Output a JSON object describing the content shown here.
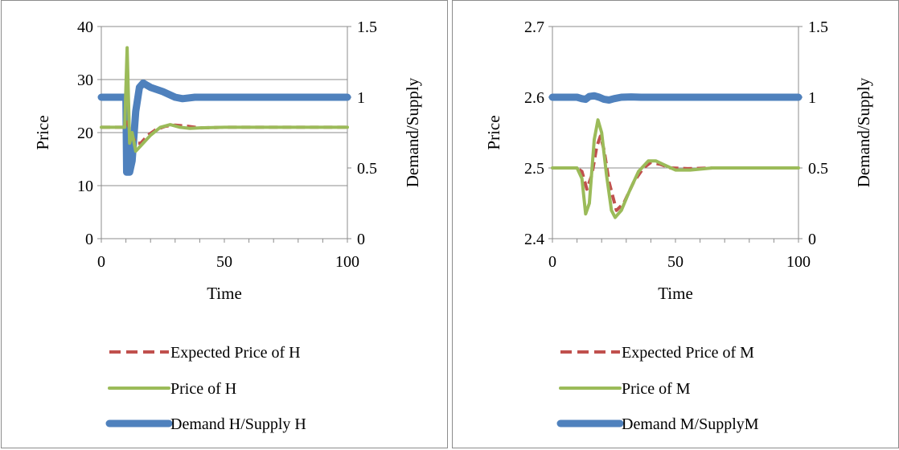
{
  "chart_data": [
    {
      "type": "line",
      "xlabel": "Time",
      "ylabel": "Price",
      "y2label": "Demand/Supply",
      "xlim": [
        0,
        100
      ],
      "ylim": [
        0,
        40
      ],
      "y2lim": [
        0,
        1.5
      ],
      "xticks": [
        "0",
        "50",
        "100"
      ],
      "yticks": [
        "0",
        "10",
        "20",
        "30",
        "40"
      ],
      "y2ticks": [
        "0",
        "0.5",
        "1",
        "1.5"
      ],
      "grid": "horizontal",
      "legend_position": "bottom",
      "series": [
        {
          "name": "Expected Price of H",
          "axis": "left",
          "style": "dashed",
          "color": "#c0504d",
          "points": [
            [
              0,
              21
            ],
            [
              9.5,
              21
            ],
            [
              10.5,
              22
            ],
            [
              12,
              20
            ],
            [
              14,
              18
            ],
            [
              16,
              18
            ],
            [
              19,
              19.5
            ],
            [
              22,
              20.5
            ],
            [
              26,
              21.2
            ],
            [
              30,
              21.4
            ],
            [
              35,
              21.2
            ],
            [
              40,
              20.9
            ],
            [
              50,
              21
            ],
            [
              100,
              21
            ]
          ]
        },
        {
          "name": "Price of H",
          "axis": "left",
          "style": "solid",
          "color": "#9bbb59",
          "points": [
            [
              0,
              21
            ],
            [
              9.5,
              21
            ],
            [
              10.5,
              36
            ],
            [
              11.5,
              18
            ],
            [
              12.5,
              20
            ],
            [
              14,
              16.5
            ],
            [
              16,
              17.5
            ],
            [
              20,
              19.5
            ],
            [
              24,
              21
            ],
            [
              28,
              21.5
            ],
            [
              32,
              21
            ],
            [
              36,
              20.8
            ],
            [
              40,
              20.9
            ],
            [
              50,
              21
            ],
            [
              100,
              21
            ]
          ]
        },
        {
          "name": "Demand H/Supply H",
          "axis": "right",
          "style": "thick",
          "color": "#4f81bd",
          "points": [
            [
              0,
              1
            ],
            [
              10,
              1
            ],
            [
              10.3,
              0.47
            ],
            [
              11.5,
              0.47
            ],
            [
              12.5,
              0.55
            ],
            [
              14,
              0.9
            ],
            [
              15.5,
              1.07
            ],
            [
              17,
              1.1
            ],
            [
              20,
              1.07
            ],
            [
              25,
              1.04
            ],
            [
              30,
              1
            ],
            [
              33,
              0.99
            ],
            [
              38,
              1
            ],
            [
              45,
              1
            ],
            [
              100,
              1
            ]
          ]
        }
      ]
    },
    {
      "type": "line",
      "xlabel": "Time",
      "ylabel": "Price",
      "y2label": "Demand/Supply",
      "xlim": [
        0,
        100
      ],
      "ylim": [
        2.4,
        2.7
      ],
      "y2lim": [
        0,
        1.5
      ],
      "xticks": [
        "0",
        "50",
        "100"
      ],
      "yticks": [
        "2.4",
        "2.5",
        "2.6",
        "2.7"
      ],
      "y2ticks": [
        "0",
        "0.5",
        "1",
        "1.5"
      ],
      "grid": "horizontal",
      "legend_position": "bottom",
      "series": [
        {
          "name": "Expected Price of M",
          "axis": "left",
          "style": "dashed",
          "color": "#c0504d",
          "points": [
            [
              0,
              2.5
            ],
            [
              10,
              2.5
            ],
            [
              12,
              2.495
            ],
            [
              14,
              2.47
            ],
            [
              16,
              2.49
            ],
            [
              18,
              2.53
            ],
            [
              19.5,
              2.545
            ],
            [
              21,
              2.525
            ],
            [
              23,
              2.48
            ],
            [
              26,
              2.44
            ],
            [
              29,
              2.45
            ],
            [
              33,
              2.48
            ],
            [
              37,
              2.5
            ],
            [
              40,
              2.508
            ],
            [
              44,
              2.505
            ],
            [
              48,
              2.5
            ],
            [
              55,
              2.499
            ],
            [
              65,
              2.5
            ],
            [
              100,
              2.5
            ]
          ]
        },
        {
          "name": "Price of M",
          "axis": "left",
          "style": "solid",
          "color": "#9bbb59",
          "points": [
            [
              0,
              2.5
            ],
            [
              10,
              2.5
            ],
            [
              12,
              2.485
            ],
            [
              13.5,
              2.435
            ],
            [
              15,
              2.45
            ],
            [
              17,
              2.54
            ],
            [
              18.5,
              2.568
            ],
            [
              20,
              2.55
            ],
            [
              22,
              2.49
            ],
            [
              24,
              2.44
            ],
            [
              25.5,
              2.43
            ],
            [
              28,
              2.44
            ],
            [
              31,
              2.465
            ],
            [
              35,
              2.495
            ],
            [
              39,
              2.51
            ],
            [
              42,
              2.51
            ],
            [
              45,
              2.505
            ],
            [
              50,
              2.497
            ],
            [
              56,
              2.497
            ],
            [
              65,
              2.5
            ],
            [
              100,
              2.5
            ]
          ]
        },
        {
          "name": "Demand M/SupplyM",
          "axis": "right",
          "style": "thick",
          "color": "#4f81bd",
          "points": [
            [
              0,
              1
            ],
            [
              10,
              1
            ],
            [
              12,
              0.99
            ],
            [
              13.5,
              0.985
            ],
            [
              15,
              1.005
            ],
            [
              17,
              1.01
            ],
            [
              19,
              1
            ],
            [
              21,
              0.985
            ],
            [
              23,
              0.98
            ],
            [
              25,
              0.99
            ],
            [
              28,
              1
            ],
            [
              32,
              1.002
            ],
            [
              36,
              1
            ],
            [
              45,
              1
            ],
            [
              100,
              1
            ]
          ]
        }
      ]
    }
  ]
}
